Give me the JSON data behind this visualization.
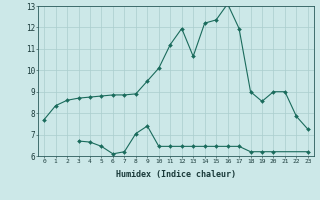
{
  "xlabel": "Humidex (Indice chaleur)",
  "line1_x": [
    0,
    1,
    2,
    3,
    4,
    5,
    6,
    7,
    8,
    9,
    10,
    11,
    12,
    13,
    14,
    15,
    16,
    17,
    18,
    19,
    20,
    21,
    22,
    23
  ],
  "line1_y": [
    7.7,
    8.35,
    8.6,
    8.7,
    8.75,
    8.8,
    8.85,
    8.85,
    8.9,
    9.5,
    10.1,
    11.2,
    11.95,
    10.65,
    12.2,
    12.35,
    13.1,
    11.95,
    9.0,
    8.55,
    9.0,
    9.0,
    7.85,
    7.25
  ],
  "line2_x": [
    3,
    4,
    5,
    6,
    7,
    8,
    9,
    10,
    11,
    12,
    13,
    14,
    15,
    16,
    17,
    18,
    19,
    20,
    23
  ],
  "line2_y": [
    6.7,
    6.65,
    6.45,
    6.1,
    6.2,
    7.05,
    7.4,
    6.45,
    6.45,
    6.45,
    6.45,
    6.45,
    6.45,
    6.45,
    6.45,
    6.2,
    6.2,
    6.2,
    6.2
  ],
  "line_color": "#1a6b5c",
  "bg_color": "#cce8e8",
  "grid_color": "#aacece",
  "ylim": [
    6,
    13
  ],
  "xlim": [
    -0.5,
    23.5
  ],
  "yticks": [
    6,
    7,
    8,
    9,
    10,
    11,
    12,
    13
  ],
  "xticks": [
    0,
    1,
    2,
    3,
    4,
    5,
    6,
    7,
    8,
    9,
    10,
    11,
    12,
    13,
    14,
    15,
    16,
    17,
    18,
    19,
    20,
    21,
    22,
    23
  ]
}
